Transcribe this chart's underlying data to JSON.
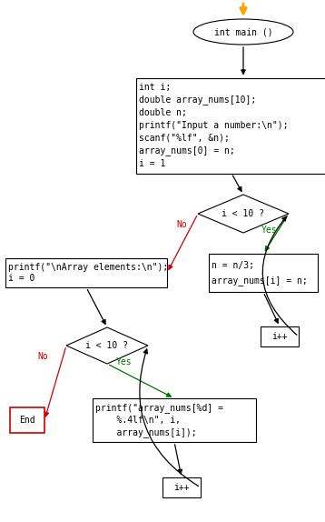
{
  "bg_color": "#ffffff",
  "orange_arrow": "#FFA500",
  "red_arrow": "#cc0000",
  "green_arrow": "#007000",
  "black": "#000000",
  "box_edge": "#000000",
  "box_fill": "#ffffff",
  "end_edge": "#cc0000",
  "font_size": 7.0,
  "font_family": "monospace",
  "start_label": "int main ()",
  "init_box_lines": [
    "int i;",
    "double array_nums[10];",
    "double n;",
    "printf(\"Input a number:\\n\");",
    "scanf(\"%lf\", &n);",
    "array_nums[0] = n;",
    "i = 1"
  ],
  "diamond1_label": "i < 10 ?",
  "assign_lines": [
    "n = n/3;",
    "array_nums[i] = n;"
  ],
  "incr1_label": "i++",
  "print1_lines": [
    "printf(\"\\nArray elements:\\n\");",
    "i = 0"
  ],
  "diamond2_label": "i < 10 ?",
  "print2_lines": [
    "printf(\"array_nums[%d] =",
    "    %.4lf\\n\", i,",
    "    array_nums[i]);"
  ],
  "incr2_label": "i++",
  "end_label": "End",
  "yes_label": "Yes",
  "no_label": "No"
}
